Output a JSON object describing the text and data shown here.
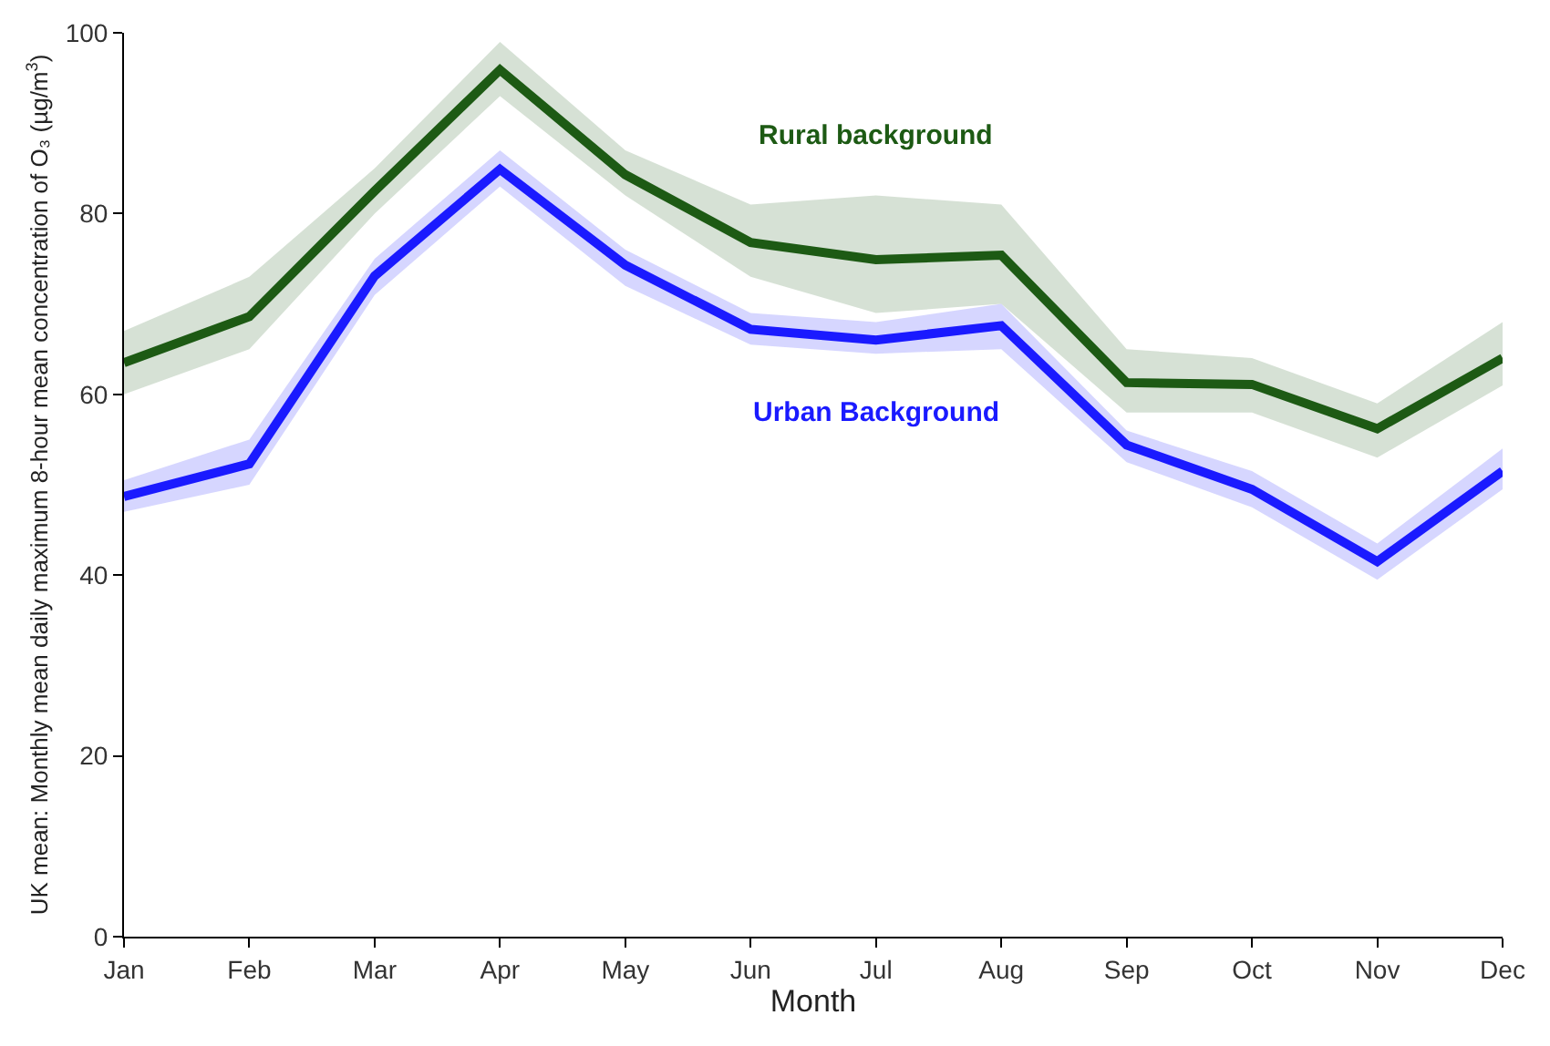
{
  "chart_data": {
    "type": "line",
    "xlabel": "Month",
    "ylabel": "UK mean: Monthly mean daily maximum 8-hour mean concentration of O₃ (µg/m$^{3}$)",
    "categories": [
      "Jan",
      "Feb",
      "Mar",
      "Apr",
      "May",
      "Jun",
      "Jul",
      "Aug",
      "Sep",
      "Oct",
      "Nov",
      "Dec"
    ],
    "ylim": [
      0,
      100
    ],
    "yticks": [
      0,
      20,
      40,
      60,
      80,
      100
    ],
    "grid": false,
    "legend": false,
    "series": [
      {
        "name": "Rural background",
        "color": "#1d5a14",
        "values": [
          63.5,
          68.6,
          82.5,
          95.9,
          84.3,
          76.8,
          74.9,
          75.4,
          61.3,
          61.1,
          56.2,
          64.0
        ],
        "lower": [
          60,
          65,
          80,
          93,
          82,
          73,
          69,
          70,
          58,
          58,
          53,
          61
        ],
        "upper": [
          67,
          73,
          85,
          99,
          87,
          81,
          82,
          81,
          65,
          64,
          59,
          68
        ]
      },
      {
        "name": "Urban Background",
        "color": "#1a1aff",
        "values": [
          48.7,
          52.3,
          73.1,
          84.9,
          74.3,
          67.2,
          66.0,
          67.6,
          54.4,
          49.5,
          41.5,
          51.5
        ],
        "lower": [
          47,
          50,
          71,
          83,
          72,
          65.5,
          64.5,
          65,
          52.5,
          47.5,
          39.5,
          49.5
        ],
        "upper": [
          50.5,
          55,
          75,
          87,
          76,
          69,
          68,
          70,
          56,
          51.5,
          43.5,
          54
        ]
      }
    ]
  }
}
